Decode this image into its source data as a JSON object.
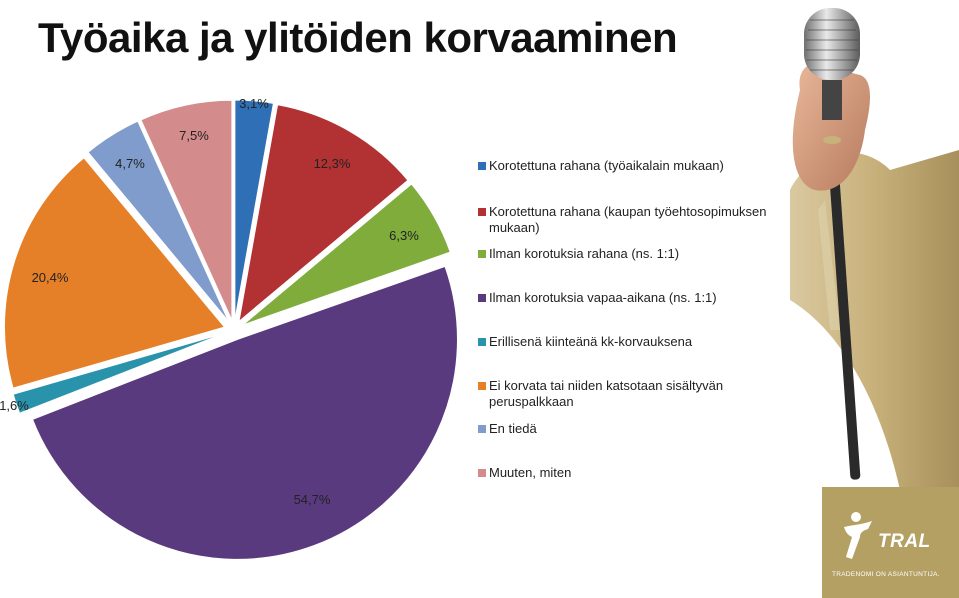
{
  "chart_data": {
    "type": "pie",
    "title": "Työaika ja ylitöiden korvaaminen",
    "slices": [
      {
        "label": "Korotettuna rahana (työaikalain mukaan)",
        "value": 3.1,
        "value_label": "3,1%",
        "color": "#2f6fb5"
      },
      {
        "label": "Korotettuna rahana (kaupan työehtosopimuksen mukaan)",
        "value": 12.3,
        "value_label": "12,3%",
        "color": "#b23234"
      },
      {
        "label": "Ilman korotuksia rahana (ns. 1:1)",
        "value": 6.3,
        "value_label": "6,3%",
        "color": "#7fac3b"
      },
      {
        "label": "Ilman korotuksia vapaa-aikana (ns. 1:1)",
        "value": 54.7,
        "value_label": "54,7%",
        "color": "#5a3a7e"
      },
      {
        "label": "Erillisenä kiinteänä kk-korvauksena",
        "value": 1.6,
        "value_label": "1,6%",
        "color": "#2a93ac"
      },
      {
        "label": "Ei korvata tai niiden katsotaan sisältyvän peruspalkkaan",
        "value": 20.4,
        "value_label": "20,4%",
        "color": "#e58028"
      },
      {
        "label": "En tiedä",
        "value": 4.7,
        "value_label": "4,7%",
        "color": "#7f9ccc"
      },
      {
        "label": "Muuten, miten",
        "value": 7.5,
        "value_label": "7,5%",
        "color": "#d48b8b"
      }
    ],
    "exploded": true,
    "legend_position": "right"
  },
  "logo": {
    "brand": "TRAL",
    "tagline": "TRADENOMI ON ASIANTUNTIJA."
  }
}
